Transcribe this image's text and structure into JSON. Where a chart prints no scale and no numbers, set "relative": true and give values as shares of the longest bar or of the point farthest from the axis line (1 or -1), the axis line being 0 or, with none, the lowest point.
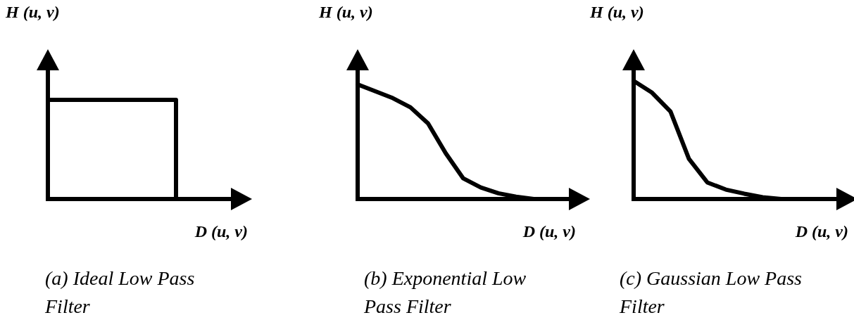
{
  "chart_data": [
    {
      "type": "step",
      "title": "(a) Ideal Low Pass Filter",
      "xlabel": "D (u, v)",
      "ylabel": "H (u, v)",
      "categories": [
        null,
        null,
        null,
        null,
        null,
        null,
        null,
        null,
        null,
        null,
        null
      ],
      "values": [
        1,
        1,
        1,
        1,
        1,
        1,
        1,
        1,
        0,
        0,
        0
      ],
      "relative": true,
      "color": "#000000",
      "marker": "none"
    },
    {
      "type": "line",
      "title": "(b) Exponential Low Pass Filter",
      "xlabel": "D (u, v)",
      "ylabel": "H (u, v)",
      "categories": [
        null,
        null,
        null,
        null,
        null,
        null,
        null,
        null,
        null,
        null,
        null,
        null,
        null
      ],
      "values": [
        1,
        0.94,
        0.88,
        0.8,
        0.66,
        0.4,
        0.18,
        0.1,
        0.05,
        0.02,
        0,
        0,
        0
      ],
      "relative": true,
      "color": "#000000",
      "marker": "none"
    },
    {
      "type": "line",
      "title": "(c) Gaussian Low Pass Filter",
      "xlabel": "D (u, v)",
      "ylabel": "H (u, v)",
      "categories": [
        null,
        null,
        null,
        null,
        null,
        null,
        null,
        null,
        null,
        null,
        null,
        null
      ],
      "values": [
        1,
        0.9,
        0.74,
        0.34,
        0.14,
        0.08,
        0.045,
        0.015,
        0,
        0,
        0,
        0
      ],
      "relative": true,
      "color": "#000000",
      "marker": "none"
    }
  ]
}
